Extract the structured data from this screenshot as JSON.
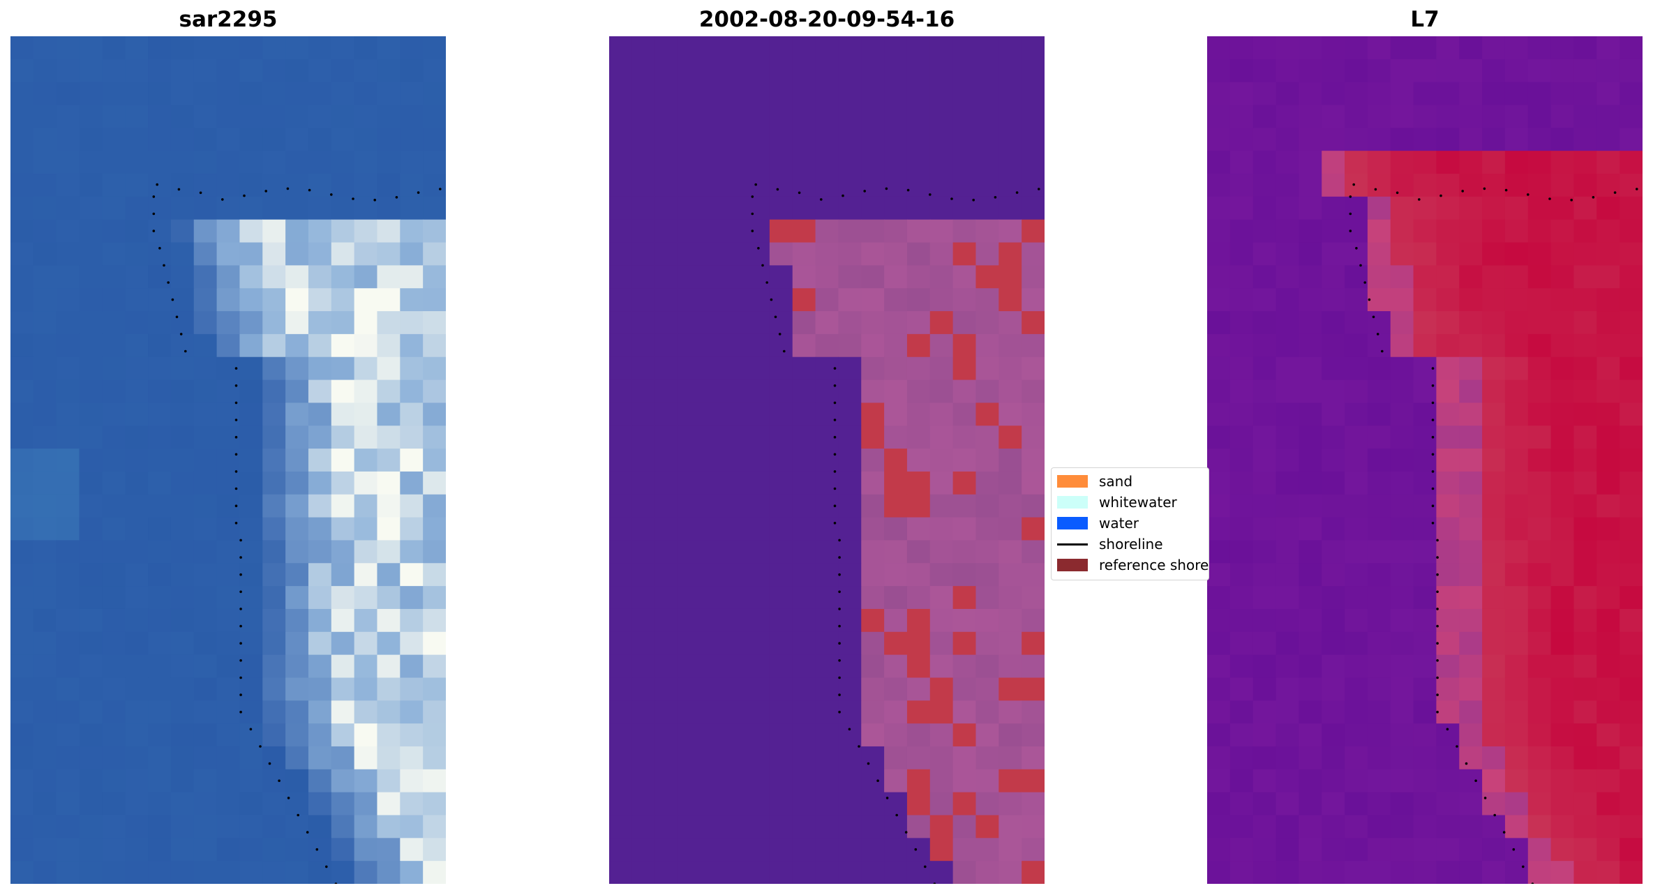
{
  "panels": [
    {
      "title": "sar2295",
      "colormap": "blue-white",
      "shows": "scene image"
    },
    {
      "title": "2002-08-20-09-54-16",
      "colormap": "plasma",
      "shows": "classified map"
    },
    {
      "title": "L7",
      "colormap": "plasma",
      "shows": "index map"
    }
  ],
  "legend": {
    "items": [
      {
        "label": "sand",
        "color": "#ff8c3a",
        "kind": "patch"
      },
      {
        "label": "whitewater",
        "color": "#ccfff9",
        "kind": "patch"
      },
      {
        "label": "water",
        "color": "#0a5cff",
        "kind": "patch"
      },
      {
        "label": "shoreline",
        "color": "#000000",
        "kind": "line"
      },
      {
        "label": "reference shoreline",
        "color": "#8b2a2f",
        "kind": "patch"
      }
    ]
  },
  "colors": {
    "water_deep": "#2a5aa8",
    "foam_white": "#f8faf2",
    "class_water": "#542193",
    "class_mixed": "#b0589a",
    "class_sand": "#c23a4a",
    "index_low": "#6a1199",
    "index_high": "#c6093f",
    "shoreline_dots": "#000000"
  }
}
